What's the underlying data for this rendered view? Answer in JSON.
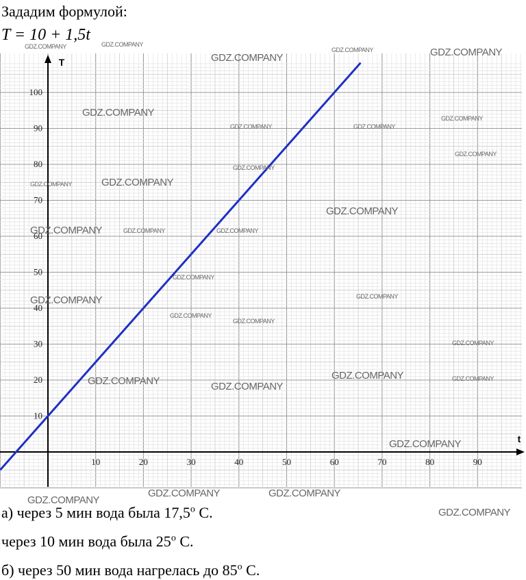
{
  "intro": "Зададим формулой:",
  "formula": "T = 10 + 1,5t",
  "answers": {
    "a_prefix": "а) через 5 мин вода была 17,5",
    "a_unit": "С.",
    "a2_prefix": "через 10 мин вода была 25",
    "a2_unit": "С.",
    "b_prefix": "б) через 50 мин вода нагрелась до 85",
    "b_unit": "С.",
    "degree": "о"
  },
  "watermark": "GDZ.COMPANY",
  "chart_data": {
    "type": "line",
    "xlabel": "t",
    "ylabel": "T",
    "x_ticks": [
      "10",
      "20",
      "30",
      "40",
      "50",
      "60",
      "70",
      "80",
      "90"
    ],
    "y_ticks": [
      "10",
      "20",
      "30",
      "40",
      "50",
      "60",
      "70",
      "80",
      "90",
      "100"
    ],
    "xlim": [
      -10,
      99
    ],
    "ylim": [
      -10,
      108
    ],
    "grid": true,
    "series": [
      {
        "color": "#1f2fc4",
        "formula": "T = 10 + 1.5t",
        "x": [
          -10,
          65.5
        ],
        "y": [
          -5,
          108.25
        ]
      }
    ]
  }
}
